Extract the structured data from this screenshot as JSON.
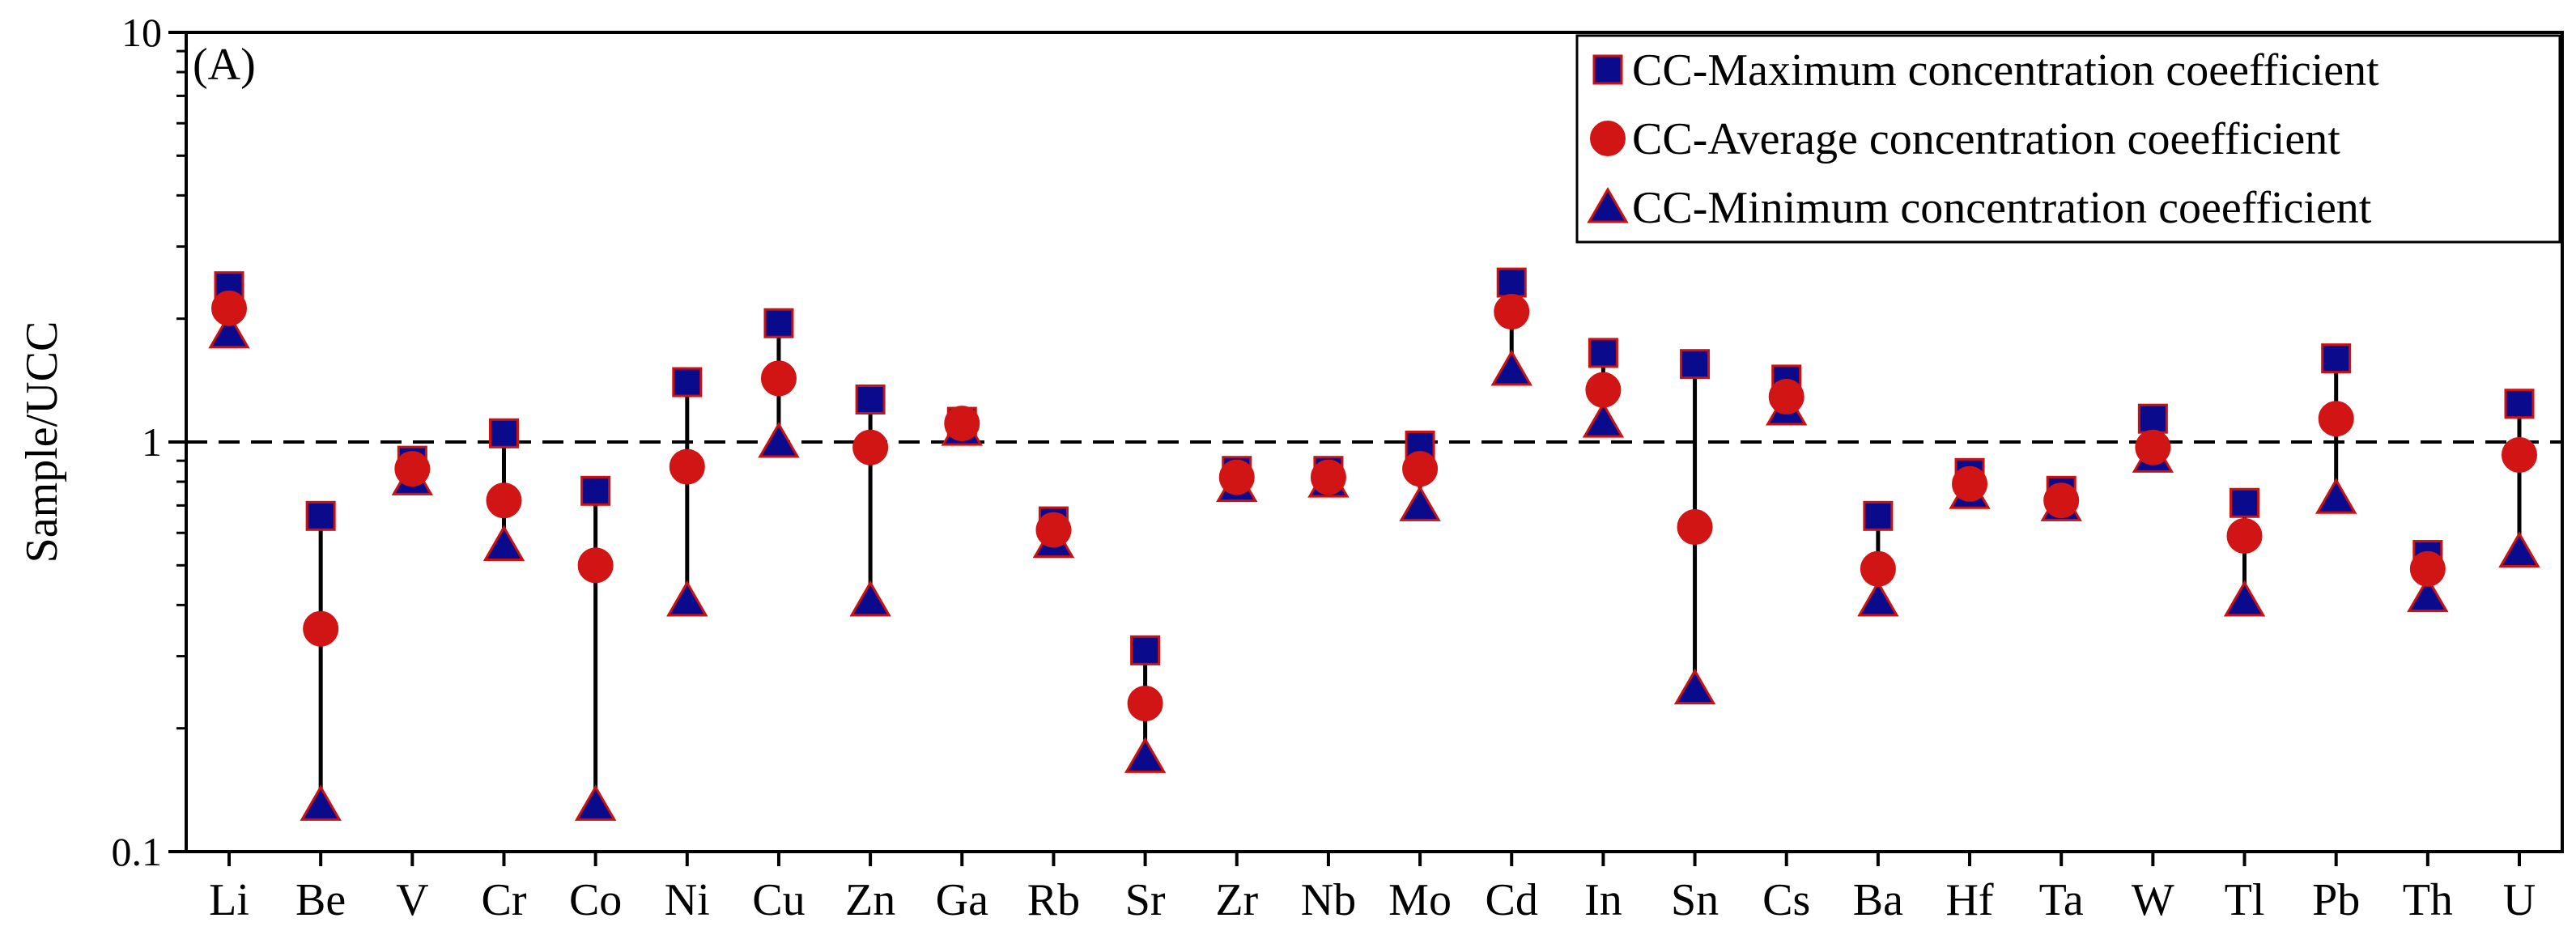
{
  "chart_data": {
    "type": "scatter",
    "panel_label": "(A)",
    "xlabel": "",
    "ylabel": "Sample/UCC",
    "yscale": "log",
    "ylim": [
      0.1,
      10
    ],
    "y_ticks": [
      {
        "value": 0.1,
        "label": "0.1"
      },
      {
        "value": 1,
        "label": "1"
      },
      {
        "value": 10,
        "label": "10"
      }
    ],
    "reference_line": {
      "value": 1,
      "style": "dashed"
    },
    "categories": [
      "Li",
      "Be",
      "V",
      "Cr",
      "Co",
      "Ni",
      "Cu",
      "Zn",
      "Ga",
      "Rb",
      "Sr",
      "Zr",
      "Nb",
      "Mo",
      "Cd",
      "In",
      "Sn",
      "Cs",
      "Ba",
      "Hf",
      "Ta",
      "W",
      "Tl",
      "Pb",
      "Th",
      "U"
    ],
    "series": [
      {
        "name": "CC-Maximum concentration coeefficient",
        "marker": "square",
        "color": "#0A0A8C",
        "edge_color": "#CC1111",
        "values": [
          2.4,
          0.66,
          0.9,
          1.05,
          0.76,
          1.4,
          1.95,
          1.27,
          1.12,
          0.64,
          0.31,
          0.85,
          0.85,
          0.98,
          2.45,
          1.65,
          1.55,
          1.42,
          0.66,
          0.84,
          0.76,
          1.14,
          0.71,
          1.6,
          0.53,
          1.24
        ]
      },
      {
        "name": "CC-Average concentration coeefficient",
        "marker": "circle",
        "color": "#D11414",
        "edge_color": "#D11414",
        "values": [
          2.12,
          0.35,
          0.86,
          0.72,
          0.5,
          0.87,
          1.43,
          0.97,
          1.11,
          0.61,
          0.23,
          0.82,
          0.82,
          0.86,
          2.08,
          1.34,
          0.62,
          1.29,
          0.49,
          0.79,
          0.72,
          0.97,
          0.59,
          1.14,
          0.49,
          0.93
        ]
      },
      {
        "name": "CC-Minimum concentration coeefficient",
        "marker": "triangle",
        "color": "#0A0A8C",
        "edge_color": "#CC1111",
        "values": [
          1.85,
          0.13,
          0.81,
          0.56,
          0.13,
          0.41,
          1.0,
          0.41,
          1.07,
          0.57,
          0.17,
          0.78,
          0.8,
          0.7,
          1.5,
          1.12,
          0.25,
          1.2,
          0.41,
          0.75,
          0.7,
          0.92,
          0.41,
          0.73,
          0.42,
          0.54
        ]
      }
    ],
    "range_lines": true,
    "legend_position": "top-right",
    "colors": {
      "axis": "#000000",
      "range_line": "#000000",
      "reference_line": "#000000"
    }
  }
}
